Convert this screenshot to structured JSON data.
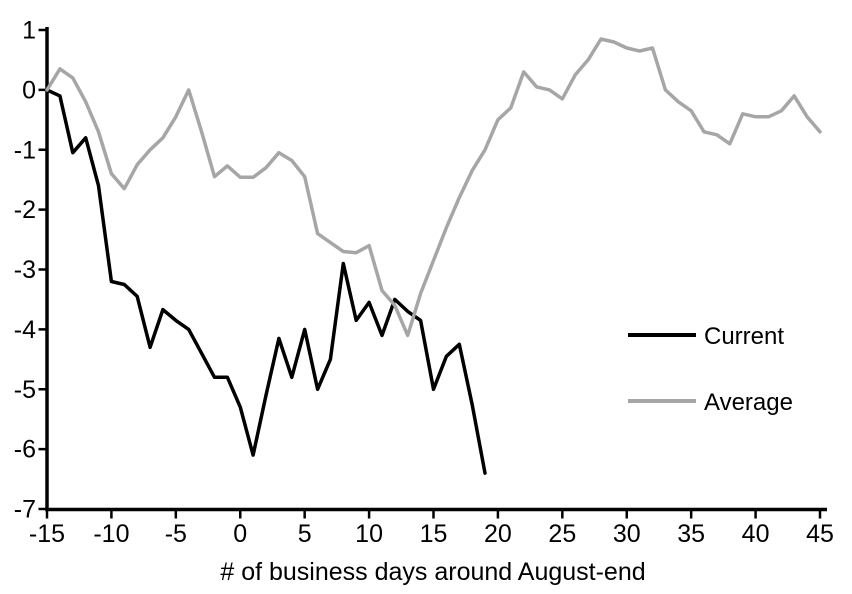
{
  "chart_data": {
    "type": "line",
    "title": "",
    "xlabel": "# of business days around August-end",
    "ylabel": "",
    "xlim": [
      -15,
      45
    ],
    "ylim": [
      -7,
      1
    ],
    "x_ticks": [
      -15,
      -10,
      -5,
      0,
      5,
      10,
      15,
      20,
      25,
      30,
      35,
      40,
      45
    ],
    "y_ticks": [
      1,
      0,
      -1,
      -2,
      -3,
      -4,
      -5,
      -6,
      -7
    ],
    "grid": false,
    "legend_position": "middle-right",
    "series": [
      {
        "name": "Current",
        "color": "#000000",
        "x": [
          -15,
          -14,
          -13,
          -12,
          -11,
          -10,
          -9,
          -8,
          -7,
          -6,
          -5,
          -4,
          -3,
          -2,
          -1,
          0,
          1,
          2,
          3,
          4,
          5,
          6,
          7,
          8,
          9,
          10,
          11,
          12,
          13,
          14,
          15,
          16,
          17,
          18,
          19
        ],
        "values": [
          0,
          -0.1,
          -1.05,
          -0.8,
          -1.6,
          -3.2,
          -3.25,
          -3.45,
          -4.3,
          -3.67,
          -3.85,
          -4.0,
          -4.4,
          -4.8,
          -4.8,
          -5.3,
          -6.1,
          -5.1,
          -4.15,
          -4.8,
          -4.0,
          -5.0,
          -4.5,
          -2.9,
          -3.85,
          -3.55,
          -4.1,
          -3.5,
          -3.7,
          -3.85,
          -5.0,
          -4.45,
          -4.25,
          -5.25,
          -6.4
        ]
      },
      {
        "name": "Average",
        "color": "#a6a6a6",
        "x": [
          -15,
          -14,
          -13,
          -12,
          -11,
          -10,
          -9,
          -8,
          -7,
          -6,
          -5,
          -4,
          -3,
          -2,
          -1,
          0,
          1,
          2,
          3,
          4,
          5,
          6,
          7,
          8,
          9,
          10,
          11,
          12,
          13,
          14,
          15,
          16,
          17,
          18,
          19,
          20,
          21,
          22,
          23,
          24,
          25,
          26,
          27,
          28,
          29,
          30,
          31,
          32,
          33,
          34,
          35,
          36,
          37,
          38,
          39,
          40,
          41,
          42,
          43,
          44,
          45
        ],
        "values": [
          0,
          0.35,
          0.2,
          -0.2,
          -0.7,
          -1.4,
          -1.65,
          -1.25,
          -1.0,
          -0.8,
          -0.45,
          0.0,
          -0.7,
          -1.45,
          -1.27,
          -1.46,
          -1.46,
          -1.3,
          -1.05,
          -1.18,
          -1.45,
          -2.4,
          -2.55,
          -2.7,
          -2.72,
          -2.6,
          -3.35,
          -3.6,
          -4.1,
          -3.4,
          -2.85,
          -2.3,
          -1.8,
          -1.35,
          -1.0,
          -0.5,
          -0.3,
          0.3,
          0.05,
          0.0,
          -0.15,
          0.25,
          0.5,
          0.85,
          0.8,
          0.7,
          0.65,
          0.7,
          0.0,
          -0.2,
          -0.35,
          -0.7,
          -0.75,
          -0.9,
          -0.4,
          -0.45,
          -0.45,
          -0.35,
          -0.1,
          -0.45,
          -0.7
        ]
      }
    ]
  },
  "legend": {
    "items": [
      {
        "label": "Current",
        "color": "#000000"
      },
      {
        "label": "Average",
        "color": "#a6a6a6"
      }
    ]
  },
  "colors": {
    "background": "#ffffff",
    "axis": "#000000",
    "current_line": "#000000",
    "average_line": "#a6a6a6"
  }
}
